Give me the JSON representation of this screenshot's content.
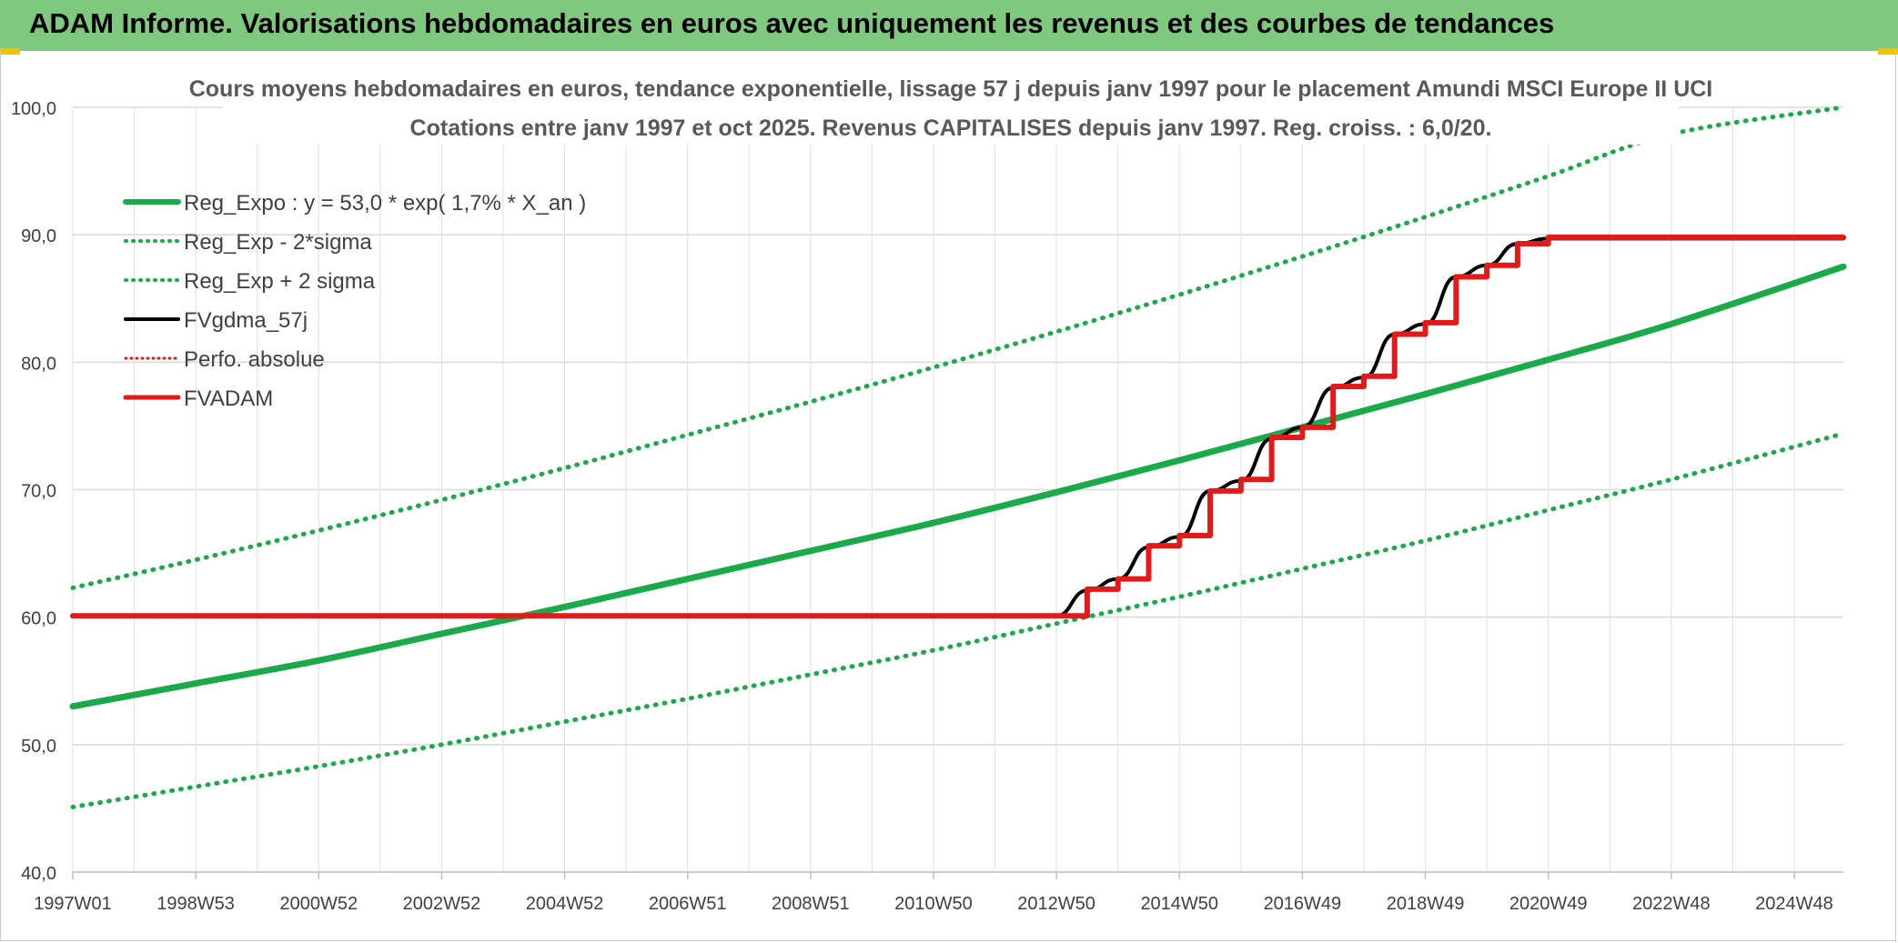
{
  "header": {
    "title": "ADAM Informe. Valorisations hebdomadaires en euros avec uniquement les revenus et des courbes de tendances"
  },
  "colors": {
    "header_bg": "#7fc97f",
    "trend_green": "#1aaa4a",
    "fv_black": "#000000",
    "adam_red": "#e41a1a"
  },
  "chart_data": {
    "type": "line",
    "title": "Cours moyens hebdomadaires en euros, tendance exponentielle, lissage 57 j depuis janv 1997 pour le placement Amundi MSCI Europe II UCI",
    "subtitle": "Cotations entre janv 1997 et oct 2025. Revenus CAPITALISES depuis janv 1997. Reg. croiss. : 6,0/20.",
    "xlabel": "",
    "ylabel": "",
    "x_ticks": [
      "1997W01",
      "1998W53",
      "2000W52",
      "2002W52",
      "2004W52",
      "2006W51",
      "2008W51",
      "2010W50",
      "2012W50",
      "2014W50",
      "2016W49",
      "2018W49",
      "2020W49",
      "2022W48",
      "2024W48"
    ],
    "y_ticks": [
      "40,0",
      "50,0",
      "60,0",
      "70,0",
      "80,0",
      "90,0",
      "100,0"
    ],
    "ylim": [
      40,
      100
    ],
    "xlim_years": [
      0,
      28.8
    ],
    "grid": true,
    "legend_position": "top-left",
    "legend": [
      {
        "label": "Reg_Expo : y = 53,0 * exp( 1,7% *  X_an )",
        "color": "#1aaa4a",
        "style": "solid"
      },
      {
        "label": "Reg_Exp - 2*sigma",
        "color": "#1aaa4a",
        "style": "dotted"
      },
      {
        "label": "Reg_Exp + 2 sigma",
        "color": "#1aaa4a",
        "style": "dotted"
      },
      {
        "label": "FVgdma_57j",
        "color": "#000000",
        "style": "solid"
      },
      {
        "label": "Perfo. absolue",
        "color": "#e41a1a",
        "style": "dotted"
      },
      {
        "label": "FVADAM",
        "color": "#e41a1a",
        "style": "solid"
      }
    ],
    "series": [
      {
        "name": "Reg_Expo : y = 53,0 * exp( 1,7% *  X_an )",
        "x_years": [
          0,
          2,
          4,
          6,
          8,
          10,
          12,
          14,
          16,
          18,
          20,
          22,
          24,
          26,
          28.8
        ],
        "values": [
          53.0,
          54.8,
          56.6,
          58.7,
          60.8,
          63.0,
          65.2,
          67.4,
          69.8,
          72.3,
          74.9,
          77.5,
          80.2,
          83.0,
          87.5
        ]
      },
      {
        "name": "Reg_Exp - 2*sigma",
        "x_years": [
          0,
          2,
          4,
          6,
          8,
          10,
          12,
          14,
          16,
          18,
          20,
          22,
          24,
          26,
          28.8
        ],
        "values": [
          45.1,
          46.7,
          48.3,
          50.0,
          51.8,
          53.6,
          55.5,
          57.4,
          59.5,
          61.6,
          63.8,
          66.0,
          68.4,
          70.8,
          74.4
        ]
      },
      {
        "name": "Reg_Exp + 2 sigma",
        "x_years": [
          0,
          2,
          4,
          6,
          8,
          10,
          12,
          14,
          16,
          18,
          20,
          22,
          24,
          26,
          28.8
        ],
        "values": [
          62.3,
          64.5,
          66.8,
          69.2,
          71.7,
          74.3,
          76.9,
          79.6,
          82.4,
          85.3,
          88.3,
          91.4,
          94.6,
          97.9,
          100.0
        ]
      },
      {
        "name": "FVgdma_57j",
        "x_years": [
          0,
          16.0,
          16.5,
          17.0,
          17.5,
          18.0,
          18.5,
          19.0,
          19.5,
          20.0,
          20.5,
          21.0,
          21.5,
          22.0,
          22.5,
          23.0,
          23.5,
          24.0,
          24.5,
          25.0,
          28.8
        ],
        "values": [
          60.1,
          60.1,
          62.1,
          63.0,
          65.5,
          66.3,
          69.9,
          70.7,
          74.0,
          74.9,
          78.0,
          78.8,
          82.2,
          83.0,
          86.7,
          87.6,
          89.3,
          89.7,
          89.7,
          89.7,
          89.7
        ]
      },
      {
        "name": "FVADAM",
        "x_years": [
          0,
          16.0,
          16.5,
          17.0,
          17.5,
          18.0,
          18.5,
          19.0,
          19.5,
          20.0,
          20.5,
          21.0,
          21.5,
          22.0,
          22.5,
          23.0,
          23.5,
          24.0,
          24.5,
          25.0,
          28.8
        ],
        "values": [
          60.1,
          60.1,
          62.2,
          63.0,
          65.6,
          66.4,
          69.9,
          70.8,
          74.1,
          74.9,
          78.1,
          78.9,
          82.2,
          83.1,
          86.7,
          87.6,
          89.3,
          89.8,
          89.8,
          89.8,
          89.8
        ]
      }
    ]
  }
}
